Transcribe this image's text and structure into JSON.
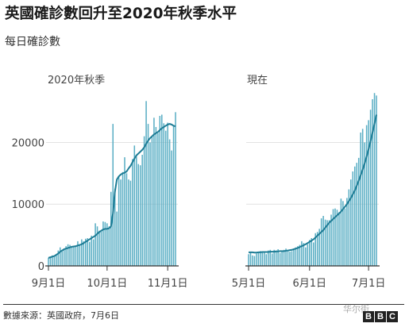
{
  "header": {
    "title": "英國確診數回升至2020年秋季水平",
    "subtitle": "每日確診數"
  },
  "footer": {
    "source": "數據來源：英國政府，7月6日",
    "watermark": "华尔街",
    "logo_letters": [
      "B",
      "B",
      "C"
    ]
  },
  "colors": {
    "bar": "#5aaec4",
    "line": "#1d7c95",
    "axis": "#333333",
    "grid": "#e2e2e2"
  },
  "chart_data": [
    {
      "type": "bar",
      "panel_label": "2020年秋季",
      "y_ticks": [
        0,
        10000,
        20000
      ],
      "ylim": [
        0,
        27000
      ],
      "x_tick_labels": [
        "9月1日",
        "10月1日",
        "11月1日"
      ],
      "x_tick_day_index": [
        0,
        30,
        61
      ],
      "x_dates": "daily, 2020-09-01 to 2020-11-05",
      "values": [
        1300,
        1500,
        1700,
        1600,
        1900,
        2500,
        3000,
        2500,
        2700,
        3200,
        3500,
        3400,
        3000,
        3200,
        3100,
        4000,
        3400,
        4300,
        4000,
        4400,
        4500,
        3900,
        4900,
        4300,
        6900,
        6400,
        5700,
        5600,
        7200,
        7100,
        6900,
        6400,
        12000,
        23000,
        12500,
        8800,
        14500,
        14000,
        15200,
        17600,
        15000,
        14000,
        13800,
        17300,
        19500,
        17700,
        16500,
        16300,
        18000,
        21000,
        26700,
        23000,
        20000,
        21000,
        24000,
        22500,
        21500,
        24300,
        24500,
        23100,
        21900,
        23200,
        20500,
        18700,
        22800,
        24900
      ],
      "trend": [
        1300,
        1400,
        1500,
        1600,
        1800,
        2000,
        2300,
        2500,
        2700,
        2800,
        2900,
        3000,
        3100,
        3150,
        3200,
        3300,
        3400,
        3500,
        3700,
        3900,
        4100,
        4300,
        4500,
        4700,
        4900,
        5200,
        5500,
        5700,
        5900,
        6000,
        6000,
        6100,
        6400,
        8500,
        12000,
        14000,
        14500,
        14800,
        15000,
        15100,
        15300,
        15800,
        16200,
        16800,
        17400,
        17900,
        18200,
        18500,
        18800,
        19200,
        19800,
        20300,
        20700,
        21000,
        21300,
        21500,
        21700,
        22000,
        22300,
        22500,
        22700,
        22900,
        23000,
        22900,
        22700,
        22600
      ]
    },
    {
      "type": "bar",
      "panel_label": "現在",
      "y_ticks": [
        0,
        10000,
        20000
      ],
      "ylim": [
        0,
        27000
      ],
      "x_tick_labels": [
        "5月1日",
        "6月1日",
        "7月1日"
      ],
      "x_tick_day_index": [
        0,
        31,
        61
      ],
      "x_dates": "daily, 2021-05-01 to 2021-07-05",
      "values": [
        1900,
        2200,
        1700,
        1600,
        2000,
        2100,
        2400,
        2200,
        2300,
        1900,
        2500,
        2600,
        2000,
        2600,
        2500,
        2700,
        2100,
        2300,
        2600,
        2800,
        2400,
        2300,
        2400,
        2600,
        3000,
        3200,
        3400,
        4000,
        3700,
        3000,
        3500,
        4200,
        4500,
        3800,
        5300,
        5500,
        6000,
        7700,
        8100,
        7500,
        7400,
        7400,
        8300,
        9200,
        9300,
        9100,
        8700,
        10900,
        10500,
        9300,
        11000,
        12400,
        14000,
        15300,
        16100,
        16700,
        17500,
        21600,
        22200,
        20000,
        22800,
        23600,
        25300,
        27000,
        28000,
        27600
      ],
      "trend": [
        2200,
        2200,
        2200,
        2150,
        2150,
        2200,
        2200,
        2250,
        2250,
        2250,
        2250,
        2300,
        2300,
        2300,
        2350,
        2350,
        2400,
        2400,
        2400,
        2450,
        2500,
        2550,
        2600,
        2700,
        2800,
        2900,
        3050,
        3200,
        3350,
        3500,
        3700,
        3900,
        4100,
        4300,
        4600,
        4900,
        5200,
        5500,
        5800,
        6200,
        6600,
        7000,
        7300,
        7600,
        7900,
        8200,
        8500,
        8800,
        9200,
        9600,
        10000,
        10500,
        11000,
        11600,
        12200,
        13000,
        13800,
        14700,
        15600,
        16600,
        17700,
        18900,
        20200,
        21600,
        23000,
        24500
      ]
    }
  ]
}
